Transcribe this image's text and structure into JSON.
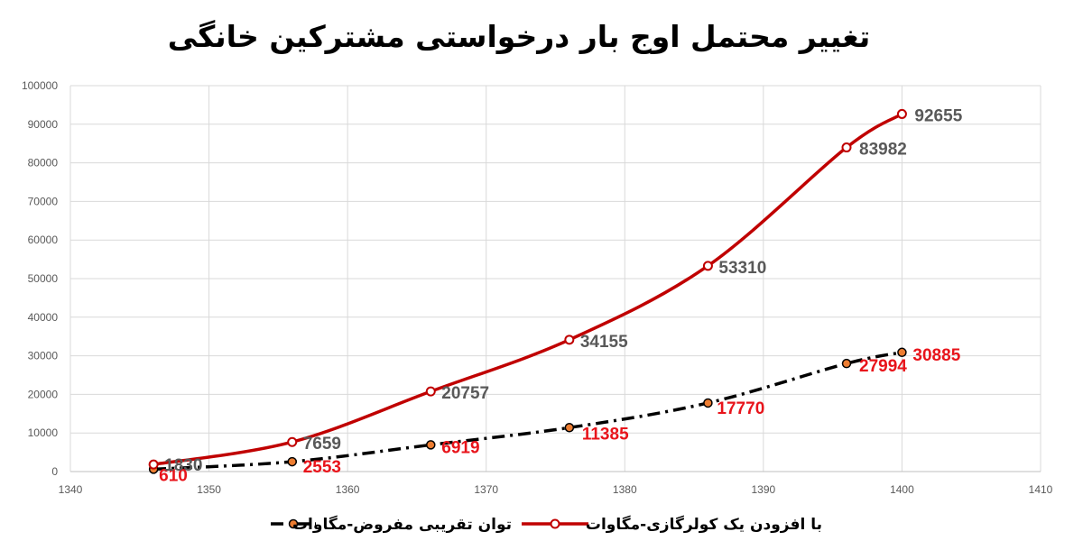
{
  "chart_data": {
    "type": "line",
    "title": "تغییر محتمل اوج بار درخواستی مشترکین خانگی",
    "xlim": [
      1340,
      1410
    ],
    "ylim": [
      0,
      100000
    ],
    "x_ticks": [
      1340,
      1350,
      1360,
      1370,
      1380,
      1390,
      1400,
      1410
    ],
    "y_ticks": [
      0,
      10000,
      20000,
      30000,
      40000,
      50000,
      60000,
      70000,
      80000,
      90000,
      100000
    ],
    "grid": true,
    "legend_position": "bottom",
    "series": [
      {
        "name": "با افزودن یک کولرگازی-مگاوات",
        "color": "#c00000",
        "label_color": "#595959",
        "x": [
          1346,
          1356,
          1366,
          1376,
          1386,
          1396,
          1400
        ],
        "y": [
          1830,
          7659,
          20757,
          34155,
          53310,
          83982,
          92655
        ],
        "labels": [
          "1830",
          "7659",
          "20757",
          "34155",
          "53310",
          "83982",
          "92655"
        ]
      },
      {
        "name": "توان تقریبی مفروض-مگاوات",
        "color": "#000000",
        "marker_color": "#ed7d31",
        "label_color": "#e8141b",
        "x": [
          1346,
          1356,
          1366,
          1376,
          1386,
          1396,
          1400
        ],
        "y": [
          610,
          2553,
          6919,
          11385,
          17770,
          27994,
          30885
        ],
        "labels": [
          "610",
          "2553",
          "6919",
          "11385",
          "17770",
          "27994",
          "30885"
        ]
      }
    ]
  }
}
